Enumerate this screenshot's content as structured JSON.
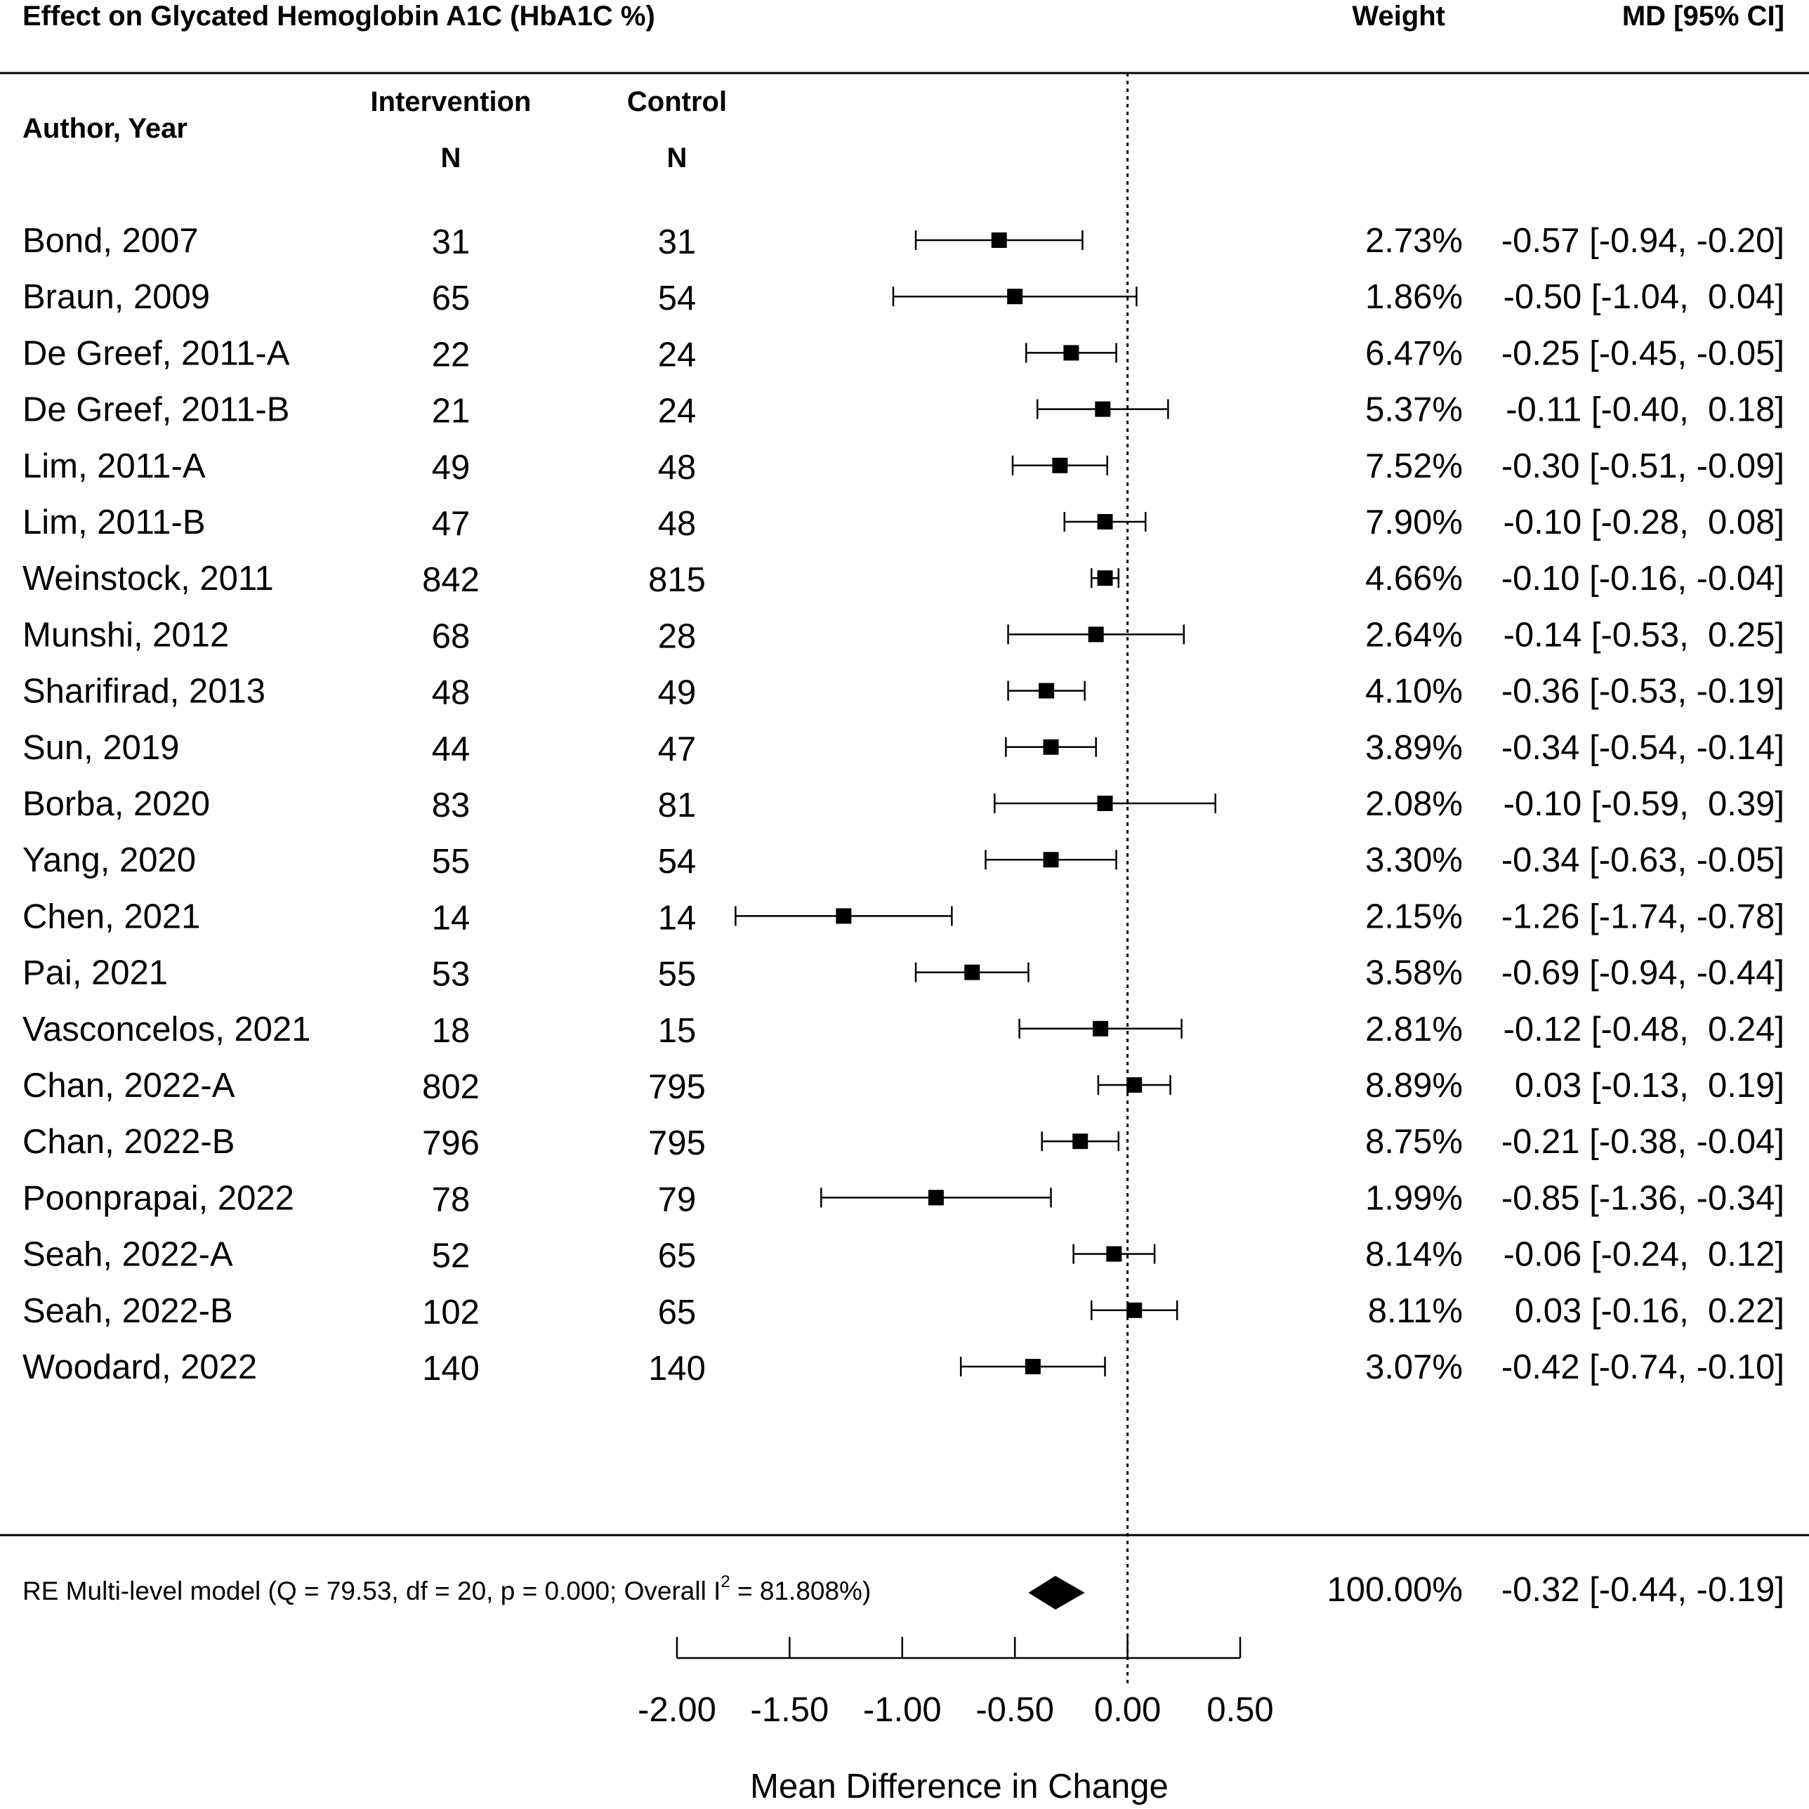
{
  "chart_data": {
    "type": "forest",
    "title": "Effect on Glycated Hemoglobin A1C (HbA1C %)",
    "columns": {
      "author": "Author, Year",
      "intervention": "Intervention",
      "control": "Control",
      "n": "N",
      "weight": "Weight",
      "effect": "MD [95% CI]"
    },
    "xlabel": "Mean Difference in Change",
    "xlim": [
      -2.0,
      0.5
    ],
    "xticks": [
      -2.0,
      -1.5,
      -1.0,
      -0.5,
      0.0,
      0.5
    ],
    "xtick_labels": [
      "-2.00",
      "-1.50",
      "-1.00",
      "-0.50",
      "0.00",
      "0.50"
    ],
    "reference_line": 0,
    "studies": [
      {
        "author": "Bond, 2007",
        "n_int": "31",
        "n_ctrl": "31",
        "md": -0.57,
        "lo": -0.94,
        "hi": -0.2,
        "weight": "2.73%",
        "ci_text": "-0.57 [-0.94, -0.20]"
      },
      {
        "author": "Braun, 2009",
        "n_int": "65",
        "n_ctrl": "54",
        "md": -0.5,
        "lo": -1.04,
        "hi": 0.04,
        "weight": "1.86%",
        "ci_text": "-0.50 [-1.04,  0.04]"
      },
      {
        "author": "De Greef, 2011-A",
        "n_int": "22",
        "n_ctrl": "24",
        "md": -0.25,
        "lo": -0.45,
        "hi": -0.05,
        "weight": "6.47%",
        "ci_text": "-0.25 [-0.45, -0.05]"
      },
      {
        "author": "De Greef, 2011-B",
        "n_int": "21",
        "n_ctrl": "24",
        "md": -0.11,
        "lo": -0.4,
        "hi": 0.18,
        "weight": "5.37%",
        "ci_text": "-0.11 [-0.40,  0.18]"
      },
      {
        "author": "Lim, 2011-A",
        "n_int": "49",
        "n_ctrl": "48",
        "md": -0.3,
        "lo": -0.51,
        "hi": -0.09,
        "weight": "7.52%",
        "ci_text": "-0.30 [-0.51, -0.09]"
      },
      {
        "author": "Lim, 2011-B",
        "n_int": "47",
        "n_ctrl": "48",
        "md": -0.1,
        "lo": -0.28,
        "hi": 0.08,
        "weight": "7.90%",
        "ci_text": "-0.10 [-0.28,  0.08]"
      },
      {
        "author": "Weinstock, 2011",
        "n_int": "842",
        "n_ctrl": "815",
        "md": -0.1,
        "lo": -0.16,
        "hi": -0.04,
        "weight": "4.66%",
        "ci_text": "-0.10 [-0.16, -0.04]"
      },
      {
        "author": "Munshi, 2012",
        "n_int": "68",
        "n_ctrl": "28",
        "md": -0.14,
        "lo": -0.53,
        "hi": 0.25,
        "weight": "2.64%",
        "ci_text": "-0.14 [-0.53,  0.25]"
      },
      {
        "author": "Sharifirad, 2013",
        "n_int": "48",
        "n_ctrl": "49",
        "md": -0.36,
        "lo": -0.53,
        "hi": -0.19,
        "weight": "4.10%",
        "ci_text": "-0.36 [-0.53, -0.19]"
      },
      {
        "author": "Sun, 2019",
        "n_int": "44",
        "n_ctrl": "47",
        "md": -0.34,
        "lo": -0.54,
        "hi": -0.14,
        "weight": "3.89%",
        "ci_text": "-0.34 [-0.54, -0.14]"
      },
      {
        "author": "Borba, 2020",
        "n_int": "83",
        "n_ctrl": "81",
        "md": -0.1,
        "lo": -0.59,
        "hi": 0.39,
        "weight": "2.08%",
        "ci_text": "-0.10 [-0.59,  0.39]"
      },
      {
        "author": "Yang, 2020",
        "n_int": "55",
        "n_ctrl": "54",
        "md": -0.34,
        "lo": -0.63,
        "hi": -0.05,
        "weight": "3.30%",
        "ci_text": "-0.34 [-0.63, -0.05]"
      },
      {
        "author": "Chen, 2021",
        "n_int": "14",
        "n_ctrl": "14",
        "md": -1.26,
        "lo": -1.74,
        "hi": -0.78,
        "weight": "2.15%",
        "ci_text": "-1.26 [-1.74, -0.78]"
      },
      {
        "author": "Pai, 2021",
        "n_int": "53",
        "n_ctrl": "55",
        "md": -0.69,
        "lo": -0.94,
        "hi": -0.44,
        "weight": "3.58%",
        "ci_text": "-0.69 [-0.94, -0.44]"
      },
      {
        "author": "Vasconcelos, 2021",
        "n_int": "18",
        "n_ctrl": "15",
        "md": -0.12,
        "lo": -0.48,
        "hi": 0.24,
        "weight": "2.81%",
        "ci_text": "-0.12 [-0.48,  0.24]"
      },
      {
        "author": "Chan, 2022-A",
        "n_int": "802",
        "n_ctrl": "795",
        "md": 0.03,
        "lo": -0.13,
        "hi": 0.19,
        "weight": "8.89%",
        "ci_text": " 0.03 [-0.13,  0.19]"
      },
      {
        "author": "Chan, 2022-B",
        "n_int": "796",
        "n_ctrl": "795",
        "md": -0.21,
        "lo": -0.38,
        "hi": -0.04,
        "weight": "8.75%",
        "ci_text": "-0.21 [-0.38, -0.04]"
      },
      {
        "author": "Poonprapai, 2022",
        "n_int": "78",
        "n_ctrl": "79",
        "md": -0.85,
        "lo": -1.36,
        "hi": -0.34,
        "weight": "1.99%",
        "ci_text": "-0.85 [-1.36, -0.34]"
      },
      {
        "author": "Seah, 2022-A",
        "n_int": "52",
        "n_ctrl": "65",
        "md": -0.06,
        "lo": -0.24,
        "hi": 0.12,
        "weight": "8.14%",
        "ci_text": "-0.06 [-0.24,  0.12]"
      },
      {
        "author": "Seah, 2022-B",
        "n_int": "102",
        "n_ctrl": "65",
        "md": 0.03,
        "lo": -0.16,
        "hi": 0.22,
        "weight": "8.11%",
        "ci_text": " 0.03 [-0.16,  0.22]"
      },
      {
        "author": "Woodard, 2022",
        "n_int": "140",
        "n_ctrl": "140",
        "md": -0.42,
        "lo": -0.74,
        "hi": -0.1,
        "weight": "3.07%",
        "ci_text": "-0.42 [-0.74, -0.10]"
      }
    ],
    "summary": {
      "label_pre": "RE Multi-level model (Q = 79.53, df = 20, p = 0.000; Overall I",
      "label_sup": "2",
      "label_post": " = 81.808%)",
      "md": -0.32,
      "lo": -0.44,
      "hi": -0.19,
      "weight": "100.00%",
      "ci_text": "-0.32 [-0.44, -0.19]"
    }
  }
}
